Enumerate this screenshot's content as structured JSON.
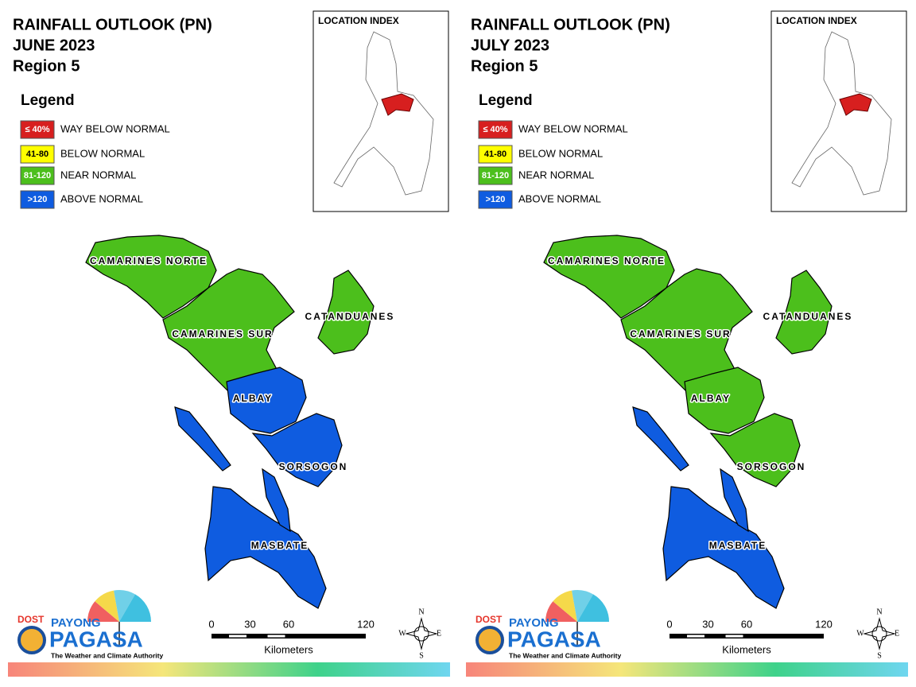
{
  "panels": [
    {
      "title": [
        "RAINFALL OUTLOOK (PN)",
        "JUNE 2023",
        "Region 5"
      ],
      "legend": {
        "title": "Legend",
        "items": [
          {
            "swatch": "≤ 40%",
            "label": "WAY BELOW NORMAL",
            "color": "#d71f1f"
          },
          {
            "swatch": "41-80",
            "label": "BELOW NORMAL",
            "color": "#ffff00"
          },
          {
            "swatch": "81-120",
            "label": "NEAR NORMAL",
            "color": "#4cbf1c"
          },
          {
            "swatch": ">120",
            "label": "ABOVE NORMAL",
            "color": "#0f5ce0"
          }
        ]
      },
      "location_index": "LOCATION INDEX",
      "provinces": [
        {
          "name": "CAMARINES NORTE",
          "color": "#4cbf1c"
        },
        {
          "name": "CAMARINES SUR",
          "color": "#4cbf1c"
        },
        {
          "name": "CATANDUANES",
          "color": "#4cbf1c"
        },
        {
          "name": "ALBAY",
          "color": "#0f5ce0"
        },
        {
          "name": "SORSOGON",
          "color": "#0f5ce0"
        },
        {
          "name": "MASBATE",
          "color": "#0f5ce0"
        }
      ],
      "scale": {
        "ticks": [
          0,
          30,
          60,
          120
        ],
        "unit": "Kilometers"
      },
      "compass": {
        "n": "N",
        "e": "E",
        "s": "S",
        "w": "W"
      },
      "logo": {
        "dost": "DOST",
        "payong": "PAYONG",
        "pagasa": "PAGASA",
        "tagline": "The Weather and Climate Authority"
      }
    },
    {
      "title": [
        "RAINFALL OUTLOOK (PN)",
        "JULY 2023",
        "Region 5"
      ],
      "legend": {
        "title": "Legend",
        "items": [
          {
            "swatch": "≤ 40%",
            "label": "WAY BELOW NORMAL",
            "color": "#d71f1f"
          },
          {
            "swatch": "41-80",
            "label": "BELOW NORMAL",
            "color": "#ffff00"
          },
          {
            "swatch": "81-120",
            "label": "NEAR NORMAL",
            "color": "#4cbf1c"
          },
          {
            "swatch": ">120",
            "label": "ABOVE NORMAL",
            "color": "#0f5ce0"
          }
        ]
      },
      "location_index": "LOCATION INDEX",
      "provinces": [
        {
          "name": "CAMARINES NORTE",
          "color": "#4cbf1c"
        },
        {
          "name": "CAMARINES SUR",
          "color": "#4cbf1c"
        },
        {
          "name": "CATANDUANES",
          "color": "#4cbf1c"
        },
        {
          "name": "ALBAY",
          "color": "#4cbf1c"
        },
        {
          "name": "SORSOGON",
          "color": "#4cbf1c"
        },
        {
          "name": "MASBATE",
          "color": "#0f5ce0"
        }
      ],
      "scale": {
        "ticks": [
          0,
          30,
          60,
          120
        ],
        "unit": "Kilometers"
      },
      "compass": {
        "n": "N",
        "e": "E",
        "s": "S",
        "w": "W"
      },
      "logo": {
        "dost": "DOST",
        "payong": "PAYONG",
        "pagasa": "PAGASA",
        "tagline": "The Weather and Climate Authority"
      }
    }
  ]
}
